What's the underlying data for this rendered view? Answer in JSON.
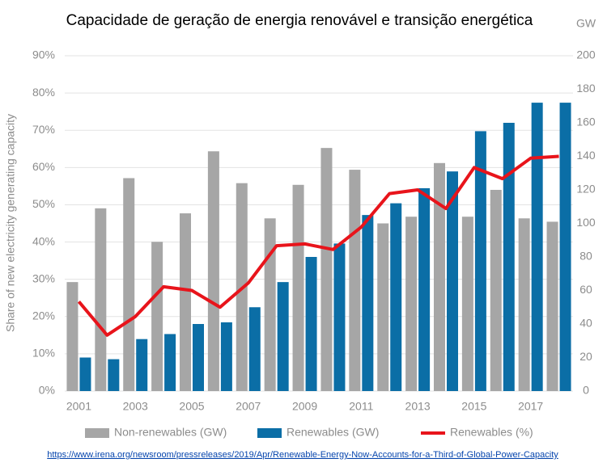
{
  "chart_data": {
    "type": "bar-line",
    "title": "Capacidade de geração de energia renovável e transição energética",
    "y_label": "Share of new electricity generating capacity",
    "y2_label": "GW",
    "categories": [
      "2001",
      null,
      "2003",
      null,
      "2005",
      null,
      "2007",
      null,
      "2009",
      null,
      "2011",
      null,
      "2013",
      null,
      "2015",
      null,
      "2017",
      null
    ],
    "series": [
      {
        "name": "Non-renewables (GW)",
        "color": "#a6a6a6",
        "kind": "bar",
        "axis": "y2",
        "values": [
          65,
          109,
          127,
          89,
          106,
          143,
          124,
          103,
          123,
          145,
          132,
          100,
          104,
          136,
          104,
          120,
          103,
          101
        ]
      },
      {
        "name": "Renewables (GW)",
        "color": "#0b6ea6",
        "kind": "bar",
        "axis": "y2",
        "values": [
          20,
          19,
          31,
          34,
          40,
          41,
          50,
          65,
          80,
          88,
          105,
          112,
          121,
          131,
          155,
          160,
          172,
          172
        ]
      },
      {
        "name": "Renewables (%)",
        "color": "#e8141b",
        "kind": "line",
        "values": [
          24,
          15,
          20,
          28,
          27,
          22.5,
          29,
          39,
          39.5,
          38,
          44,
          53,
          54,
          49,
          60,
          57,
          62.5,
          63
        ]
      }
    ],
    "ylim": [
      0,
      90
    ],
    "yticks": [
      {
        "value": 0,
        "label": "0%"
      },
      {
        "value": 10,
        "label": "10%"
      },
      {
        "value": 20,
        "label": "20%"
      },
      {
        "value": 30,
        "label": "30%"
      },
      {
        "value": 40,
        "label": "40%"
      },
      {
        "value": 50,
        "label": "50%"
      },
      {
        "value": 60,
        "label": "60%"
      },
      {
        "value": 70,
        "label": "70%"
      },
      {
        "value": 80,
        "label": "80%"
      },
      {
        "value": 90,
        "label": "90%"
      }
    ],
    "y2lim": [
      0,
      200
    ],
    "y2ticks": [
      0,
      20,
      40,
      60,
      80,
      100,
      120,
      140,
      160,
      180,
      200
    ],
    "grid": true,
    "legend": "bottom",
    "source": "https://www.irena.org/newsroom/pressreleases/2019/Apr/Renewable-Energy-Now-Accounts-for-a-Third-of-Global-Power-Capacity"
  }
}
